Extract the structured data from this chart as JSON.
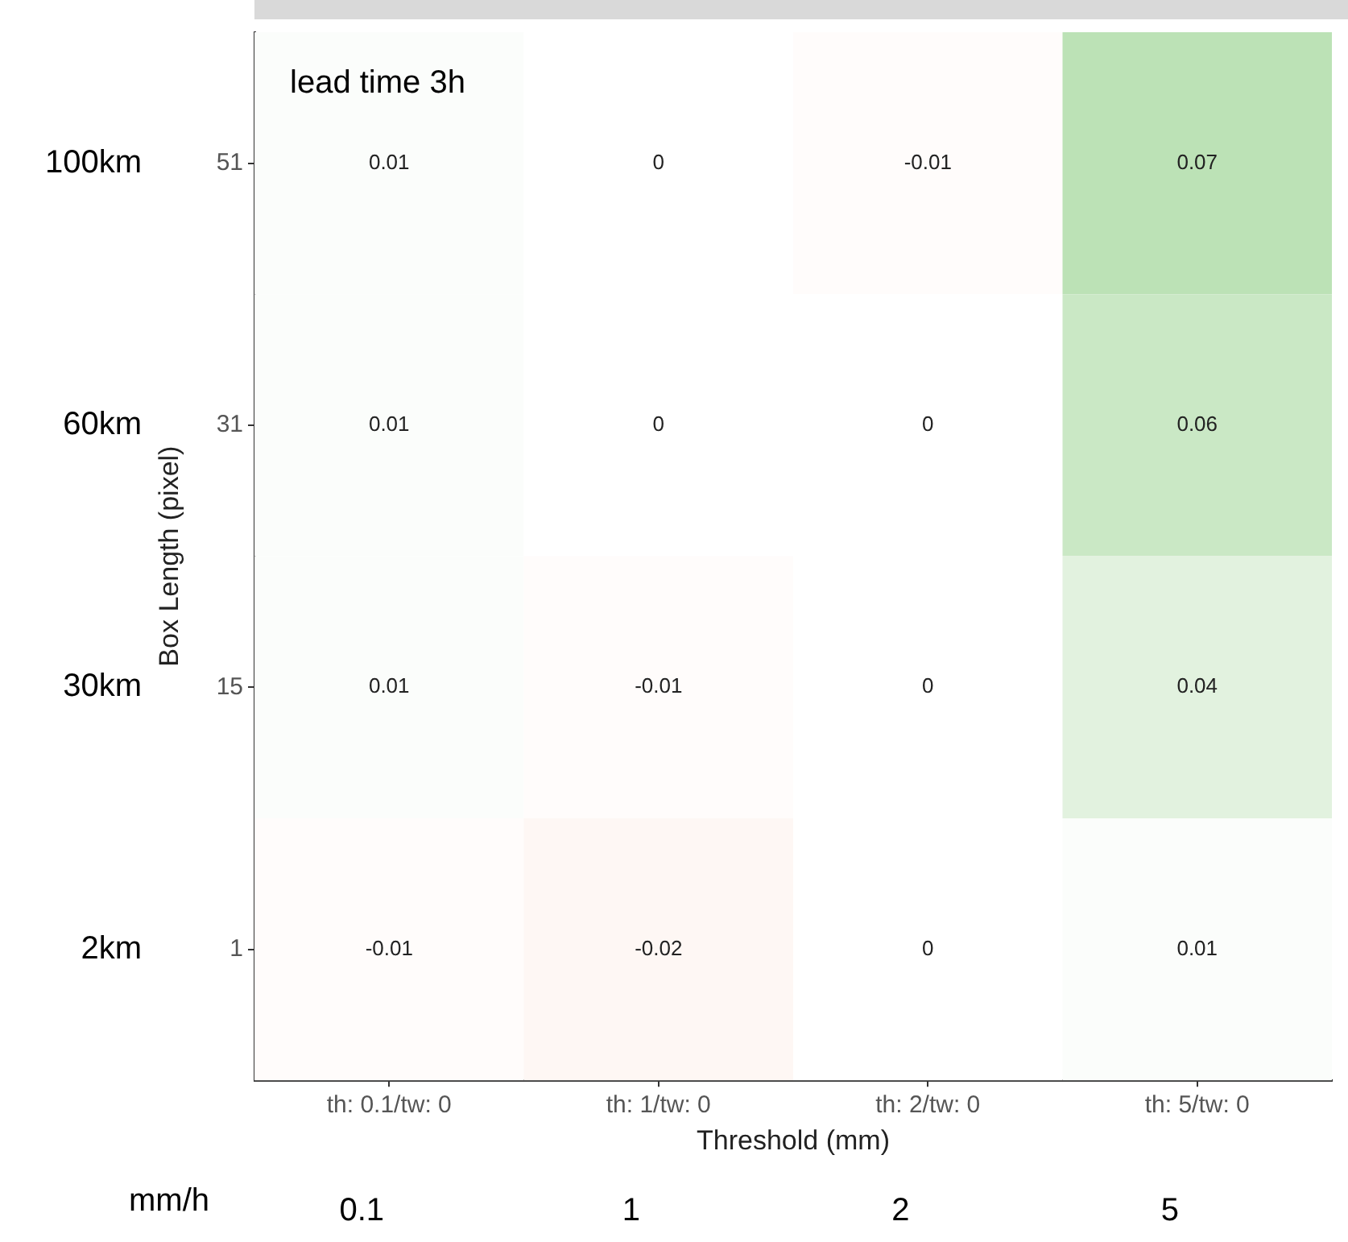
{
  "chart_data": {
    "type": "heatmap",
    "title": "lead time 3h",
    "xlabel": "Threshold (mm)",
    "ylabel": "Box Length (pixel)",
    "categories": [
      "th: 0.1/tw: 0",
      "th: 1/tw: 0",
      "th: 2/tw: 0",
      "th: 5/tw: 0"
    ],
    "y_categories": [
      "51",
      "31",
      "15",
      "1"
    ],
    "y2_categories": [
      "100km",
      "60km",
      "30km",
      "2km"
    ],
    "cells": [
      [
        0.01,
        0,
        -0.01,
        0.07
      ],
      [
        0.01,
        0,
        0,
        0.06
      ],
      [
        0.01,
        -0.01,
        0,
        0.04
      ],
      [
        -0.01,
        -0.02,
        0,
        0.01
      ]
    ],
    "data_labels": true,
    "grid": false,
    "annotations": [
      "mm/h",
      "0.1",
      "1",
      "2",
      "5"
    ]
  }
}
